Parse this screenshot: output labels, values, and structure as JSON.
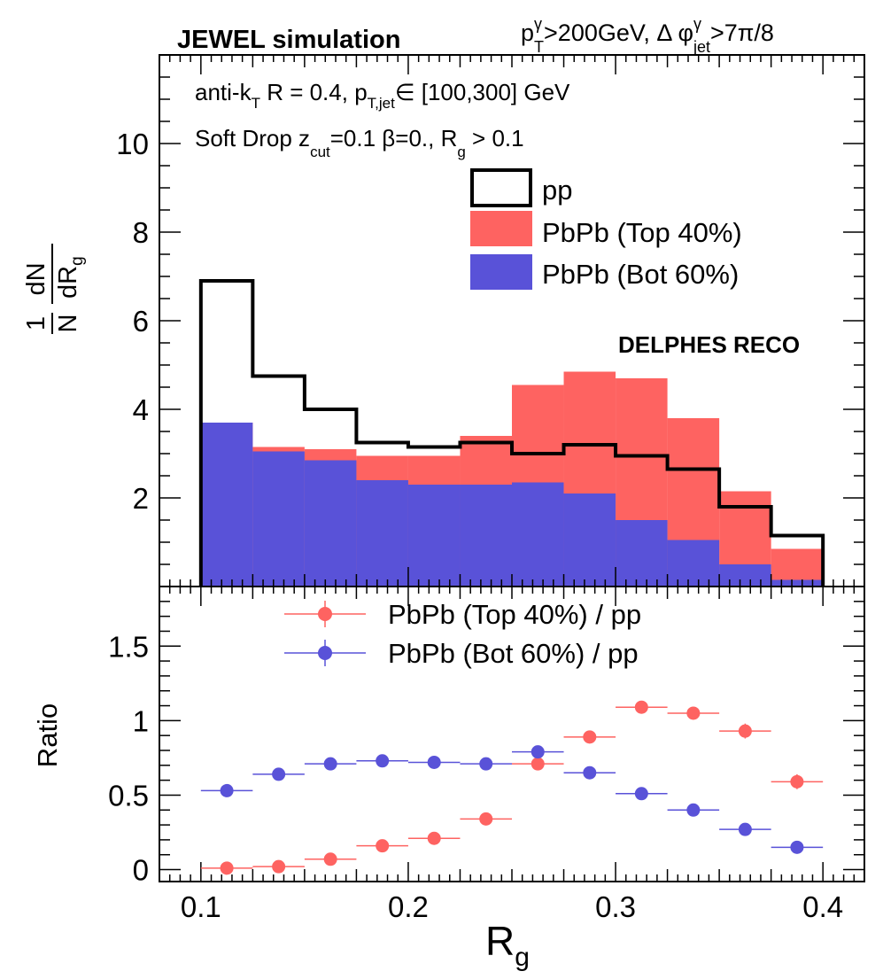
{
  "header": {
    "left_title": "JEWEL simulation",
    "right_title": {
      "pt": "p",
      "pt_sup": "γ",
      "pt_sub": "T",
      "pt_cut": ">200GeV, Δ φ",
      "phi_sup": "γ",
      "phi_sub": "jet",
      "phi_cut": ">7π/8"
    }
  },
  "annotations": {
    "line1": {
      "a": "anti-k",
      "a_sub": "T",
      "b": " R = 0.4, p",
      "b_sub": "T,jet",
      "c": "∈ [100,300] GeV"
    },
    "line2": {
      "a": "Soft Drop z",
      "a_sub": "cut",
      "b": "=0.1 β=0., R",
      "b_sub": "g",
      "c": " > 0.1"
    },
    "reco": "DELPHES RECO"
  },
  "colors": {
    "pp": "#000000",
    "top": "#fe6361",
    "bot": "#5952d8"
  },
  "chart_data": [
    {
      "type": "bar",
      "subtype": "step-histogram",
      "bin_edges": [
        0.1,
        0.125,
        0.15,
        0.175,
        0.2,
        0.225,
        0.25,
        0.275,
        0.3,
        0.325,
        0.35,
        0.375,
        0.4
      ],
      "series": [
        {
          "name": "pp",
          "style": "outline",
          "values": [
            6.9,
            4.75,
            4.0,
            3.25,
            3.15,
            3.25,
            3.0,
            3.2,
            2.95,
            2.65,
            1.8,
            1.15
          ]
        },
        {
          "name": "PbPb (Top 40%)",
          "style": "filled",
          "values": [
            3.7,
            3.15,
            3.1,
            2.95,
            2.95,
            3.4,
            4.55,
            4.85,
            4.7,
            3.8,
            2.15,
            0.85
          ]
        },
        {
          "name": "PbPb (Bot 60%)",
          "style": "filled",
          "values": [
            3.7,
            3.05,
            2.85,
            2.4,
            2.3,
            2.3,
            2.35,
            2.1,
            1.5,
            1.05,
            0.5,
            0.15
          ]
        }
      ],
      "xlim": [
        0.08,
        0.42
      ],
      "ylim": [
        0.0,
        12.0
      ],
      "yticks": [
        2,
        4,
        6,
        8,
        10
      ],
      "ytick_labels": [
        "2",
        "4",
        "6",
        "8",
        "10"
      ],
      "ylabel": {
        "num": "1",
        "den": "N",
        "frac_num": "dN",
        "frac_den": "dR",
        "den_sub": "g"
      },
      "legend": [
        "pp",
        "PbPb (Top 40%)",
        "PbPb (Bot 60%)"
      ],
      "legend_position": "top-right"
    },
    {
      "type": "scatter",
      "subtype": "ratio-with-errors",
      "x": [
        0.1125,
        0.1375,
        0.1625,
        0.1875,
        0.2125,
        0.2375,
        0.2625,
        0.2875,
        0.3125,
        0.3375,
        0.3625,
        0.3875
      ],
      "x_halfwidth": 0.0125,
      "series": [
        {
          "name": "PbPb (Top 40%) / pp",
          "values": [
            0.01,
            0.02,
            0.07,
            0.16,
            0.21,
            0.34,
            0.71,
            0.89,
            1.09,
            1.05,
            0.93,
            0.59
          ],
          "errors": [
            0.01,
            0.01,
            0.01,
            0.01,
            0.02,
            0.02,
            0.03,
            0.03,
            0.04,
            0.04,
            0.05,
            0.05
          ]
        },
        {
          "name": "PbPb (Bot 60%) / pp",
          "values": [
            0.53,
            0.64,
            0.71,
            0.73,
            0.72,
            0.71,
            0.79,
            0.65,
            0.51,
            0.4,
            0.27,
            0.15
          ],
          "errors": [
            0.02,
            0.02,
            0.02,
            0.02,
            0.02,
            0.02,
            0.03,
            0.02,
            0.02,
            0.02,
            0.02,
            0.02
          ]
        }
      ],
      "xlim": [
        0.08,
        0.42
      ],
      "ylim": [
        -0.08,
        1.9
      ],
      "yticks": [
        0,
        0.5,
        1,
        1.5
      ],
      "ytick_labels": [
        "0",
        "0.5",
        "1",
        "1.5"
      ],
      "xticks": [
        0.1,
        0.2,
        0.3,
        0.4
      ],
      "xtick_labels": [
        "0.1",
        "0.2",
        "0.3",
        "0.4"
      ],
      "ylabel": "Ratio",
      "xlabel": {
        "main": "R",
        "sub": "g"
      },
      "legend": [
        "PbPb (Top 40%) / pp",
        "PbPb (Bot 60%) / pp"
      ],
      "legend_position": "top-center"
    }
  ]
}
